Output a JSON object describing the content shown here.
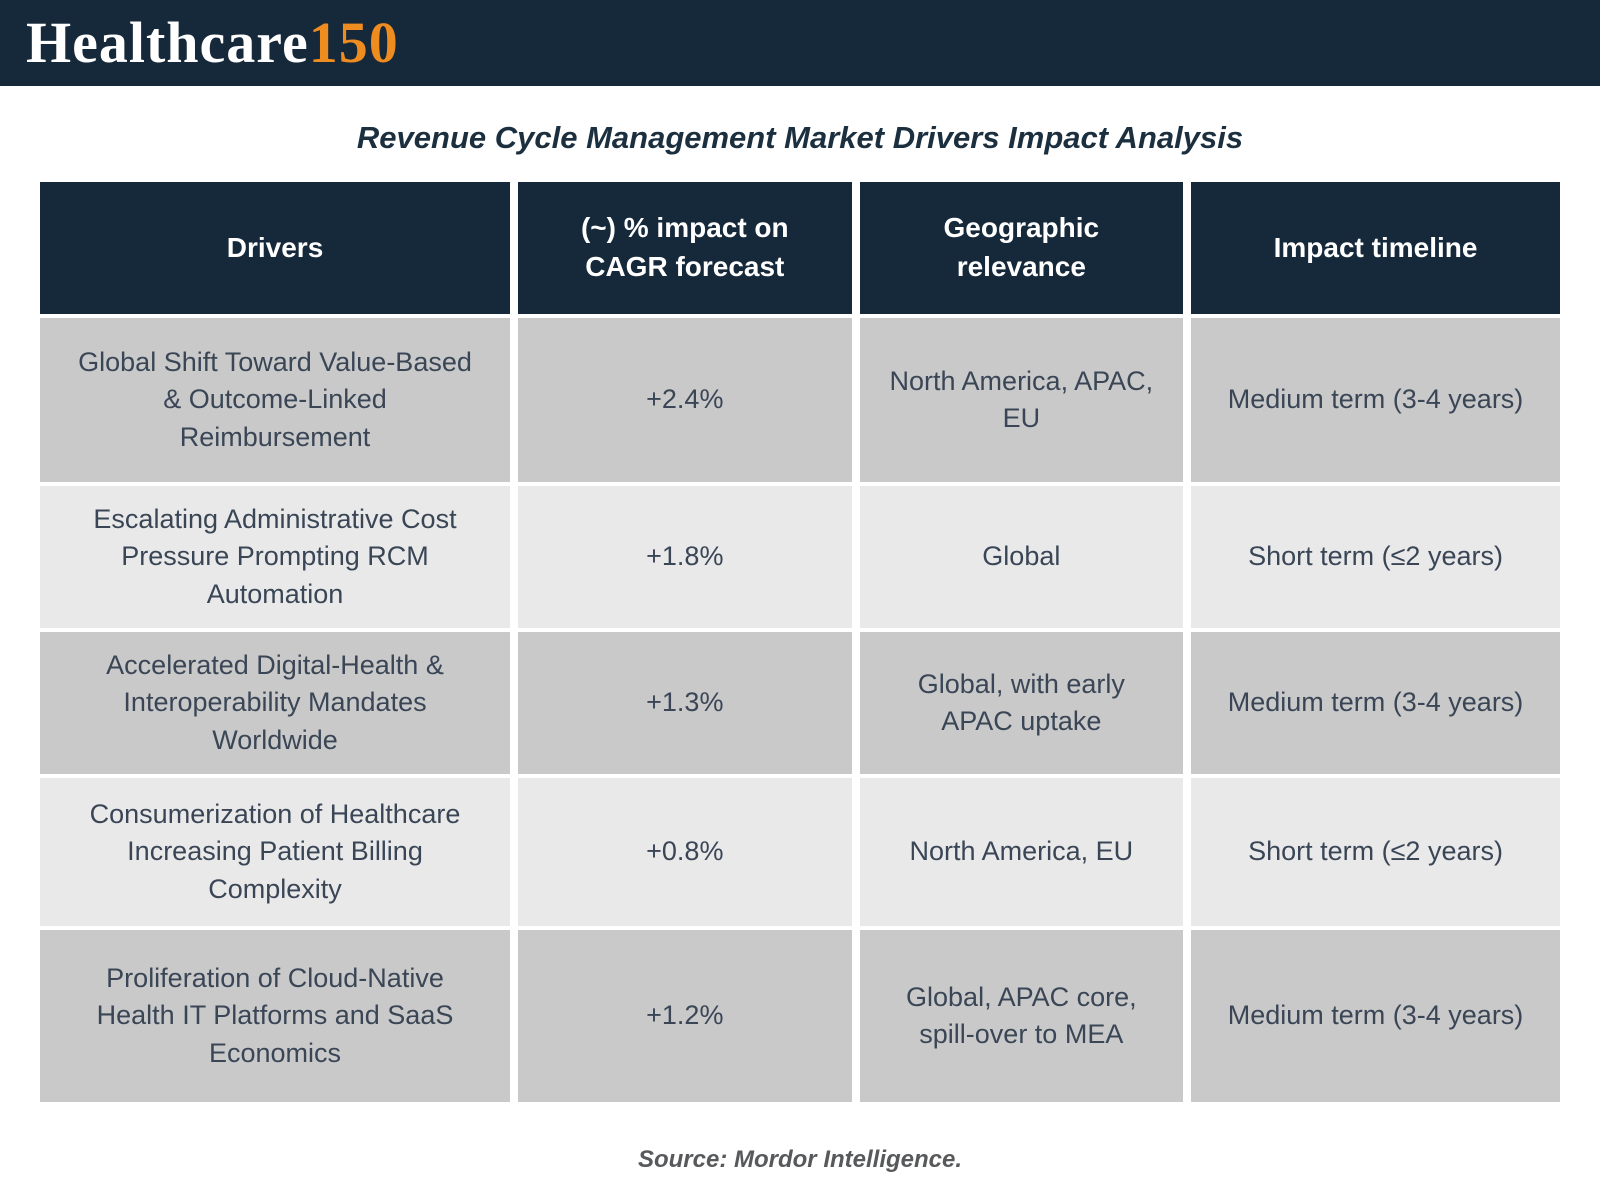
{
  "brand": {
    "name_main": "Healthcare",
    "name_accent": "150"
  },
  "title": "Revenue Cycle Management Market Drivers Impact Analysis",
  "source": "Source: Mordor Intelligence.",
  "colors": {
    "header_bg": "#16293a",
    "accent_orange": "#ef8c1f",
    "row_dark": "#c9c9c9",
    "row_light": "#e9e9e9",
    "text_dark": "#3a4656"
  },
  "chart_data": {
    "type": "table",
    "title": "Revenue Cycle Management Market Drivers Impact Analysis",
    "columns": [
      "Drivers",
      "(~) % impact on CAGR forecast",
      "Geographic relevance",
      "Impact timeline"
    ],
    "rows": [
      [
        "Global Shift Toward Value-Based & Outcome-Linked Reimbursement",
        "+2.4%",
        "North America, APAC, EU",
        "Medium term (3-4 years)"
      ],
      [
        "Escalating Administrative Cost Pressure Prompting RCM Automation",
        "+1.8%",
        "Global",
        "Short term (≤2 years)"
      ],
      [
        "Accelerated Digital-Health & Interoperability Mandates Worldwide",
        "+1.3%",
        "Global, with early APAC uptake",
        "Medium term (3-4 years)"
      ],
      [
        "Consumerization of Healthcare Increasing Patient Billing Complexity",
        "+0.8%",
        "North America, EU",
        "Short term (≤2 years)"
      ],
      [
        "Proliferation of Cloud-Native Health IT Platforms and SaaS Economics",
        "+1.2%",
        "Global, APAC core, spill-over to MEA",
        "Medium term (3-4 years)"
      ]
    ]
  }
}
